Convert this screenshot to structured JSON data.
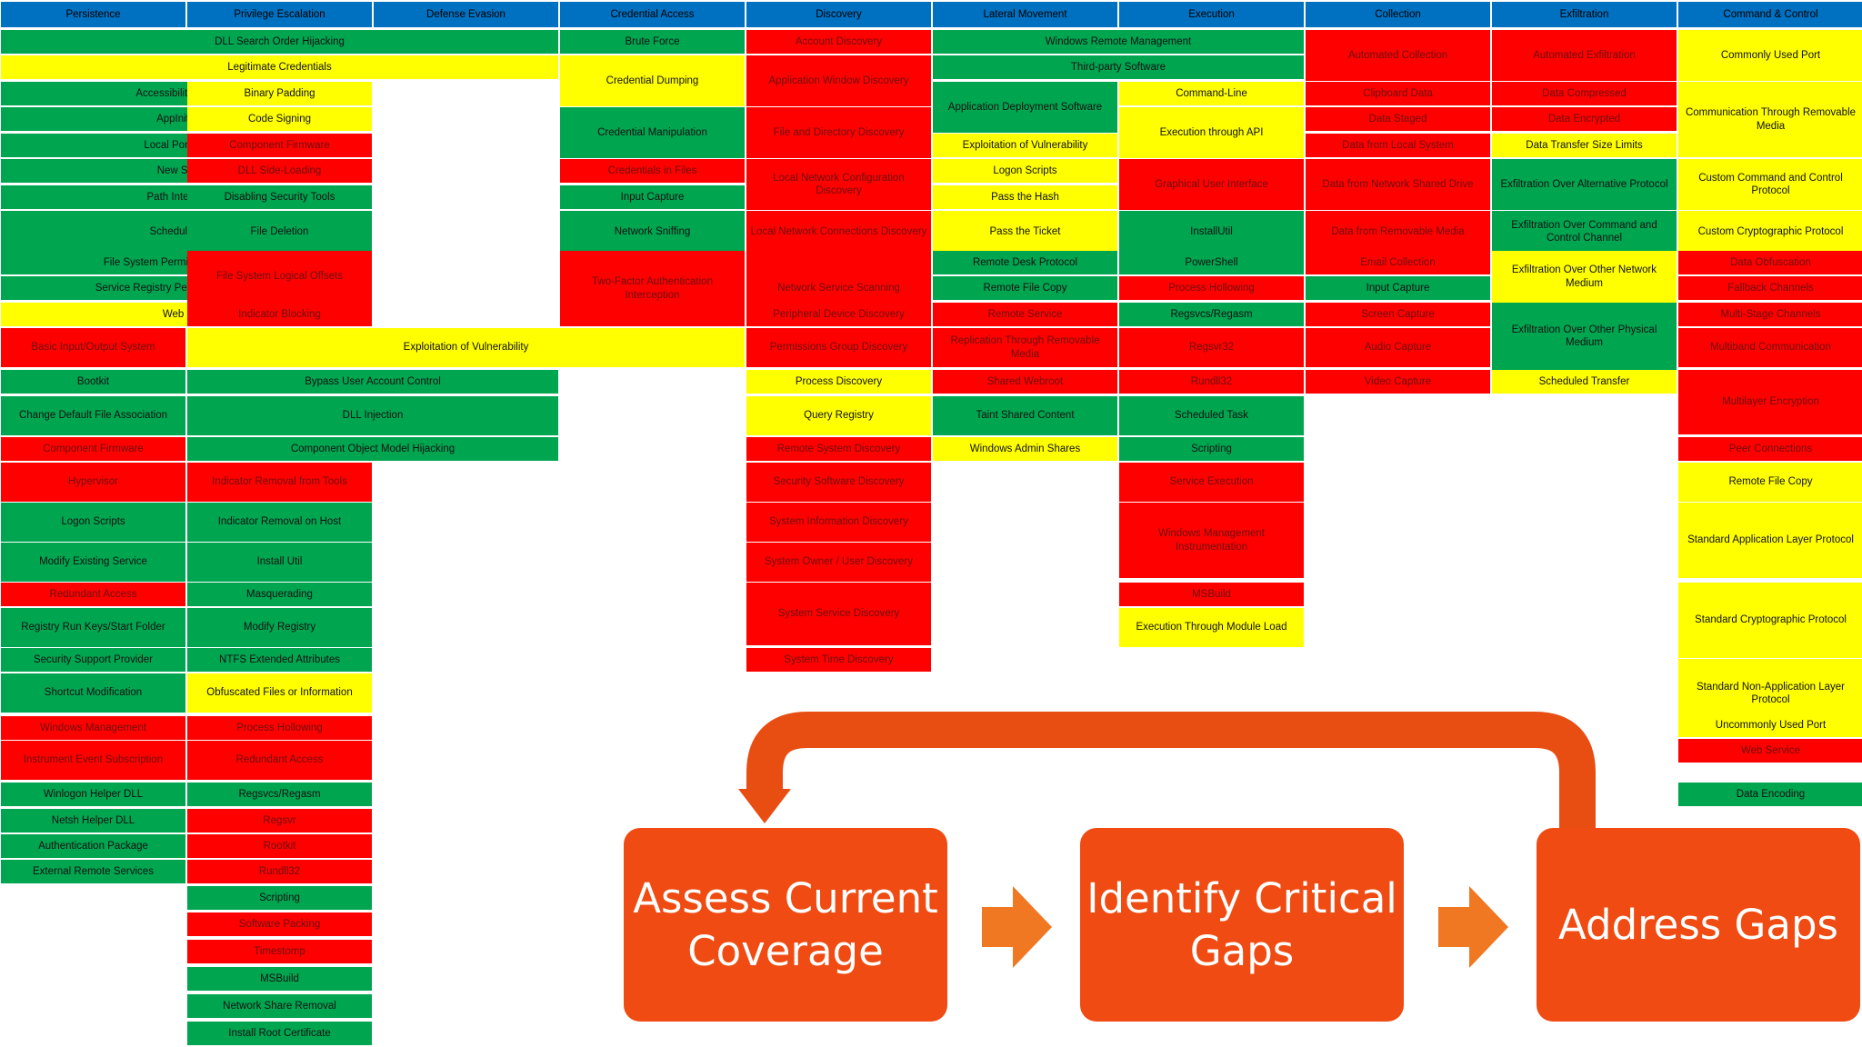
{
  "colors": {
    "green": "#00a550",
    "yellow": "#ffff00",
    "red": "#ff0000",
    "header": "#0070c0",
    "flow": "#ef4b12",
    "arrow": "#f07822",
    "loop": "#e84d12"
  },
  "columns": [
    {
      "name": "Persistence",
      "cells": [
        {
          "label": "DLL Search Order Hijacking",
          "status": "green",
          "span": 3
        },
        {
          "label": "Legitimate Credentials",
          "status": "yellow",
          "span": 3
        },
        {
          "label": "Accessibility Features",
          "status": "green",
          "span": 2
        },
        {
          "label": "AppInit DLLs",
          "status": "green",
          "span": 2
        },
        {
          "label": "Local Port Monitor",
          "status": "green",
          "span": 2
        },
        {
          "label": "New Service",
          "status": "green",
          "span": 2
        },
        {
          "label": "Path Interception",
          "status": "green",
          "span": 2
        },
        {
          "label": "Scheduled Task",
          "status": "green",
          "span": 2
        },
        {
          "label": "File System Permissions Weakness",
          "status": "green",
          "span": 2
        },
        {
          "label": "Service Registry Permission Weakness",
          "status": "green",
          "span": 2
        },
        {
          "label": "Web Shell",
          "status": "yellow",
          "span": 2
        },
        {
          "label": "Basic Input/Output System",
          "status": "red",
          "span": 1
        },
        {
          "label": "Bootkit",
          "status": "green",
          "span": 1
        },
        {
          "label": "Change Default File Association",
          "status": "green",
          "span": 1
        },
        {
          "label": "Component Firmware",
          "status": "red",
          "span": 1
        },
        {
          "label": "Hypervisor",
          "status": "red",
          "span": 1
        },
        {
          "label": "Logon Scripts",
          "status": "green",
          "span": 1
        },
        {
          "label": "Modify Existing Service",
          "status": "green",
          "span": 1
        },
        {
          "label": "Redundant Access",
          "status": "red",
          "span": 1
        },
        {
          "label": "Registry Run Keys/Start Folder",
          "status": "green",
          "span": 1
        },
        {
          "label": "Security Support Provider",
          "status": "green",
          "span": 1
        },
        {
          "label": "Shortcut Modification",
          "status": "green",
          "span": 1
        },
        {
          "label": "Windows Management",
          "status": "red",
          "span": 1
        },
        {
          "label": "Instrument Event Subscription",
          "status": "red",
          "span": 1
        },
        {
          "label": "Winlogon Helper DLL",
          "status": "green",
          "span": 1
        },
        {
          "label": "Netsh Helper DLL",
          "status": "green",
          "span": 1
        },
        {
          "label": "Authentication Package",
          "status": "green",
          "span": 1
        },
        {
          "label": "External Remote Services",
          "status": "green",
          "span": 1
        }
      ]
    },
    {
      "name": "Privilege Escalation",
      "cells": [
        {
          "label": "Binary Padding",
          "status": "yellow"
        },
        {
          "label": "Code Signing",
          "status": "yellow"
        },
        {
          "label": "Component Firmware",
          "status": "red"
        },
        {
          "label": "DLL Side-Loading",
          "status": "red"
        },
        {
          "label": "Disabling Security Tools",
          "status": "green"
        },
        {
          "label": "File Deletion",
          "status": "green"
        },
        {
          "label": "File System Logical Offsets",
          "status": "red"
        },
        {
          "label": "Indicator Blocking",
          "status": "red"
        },
        {
          "label": "Exploitation of Vulnerability",
          "status": "yellow",
          "span": 3
        },
        {
          "label": "Bypass User Account Control",
          "status": "green",
          "span": 2
        },
        {
          "label": "DLL Injection",
          "status": "green",
          "span": 2
        },
        {
          "label": "Component Object Model Hijacking",
          "status": "green",
          "span": 2
        },
        {
          "label": "Indicator Removal from Tools",
          "status": "red"
        },
        {
          "label": "Indicator Removal on Host",
          "status": "green"
        },
        {
          "label": "Install Util",
          "status": "green"
        },
        {
          "label": "Masquerading",
          "status": "green"
        },
        {
          "label": "Modify Registry",
          "status": "green"
        },
        {
          "label": "NTFS Extended Attributes",
          "status": "green"
        },
        {
          "label": "Obfuscated Files or Information",
          "status": "yellow"
        },
        {
          "label": "Process Hollowing",
          "status": "red"
        },
        {
          "label": "Redundant Access",
          "status": "red"
        },
        {
          "label": "Regsvcs/Regasm",
          "status": "green"
        },
        {
          "label": "Regsvr",
          "status": "red"
        },
        {
          "label": "Rootkit",
          "status": "red"
        },
        {
          "label": "Rundll32",
          "status": "red"
        },
        {
          "label": "Scripting",
          "status": "green"
        },
        {
          "label": "Software Packing",
          "status": "red"
        },
        {
          "label": "Timestomp",
          "status": "red"
        },
        {
          "label": "MSBuild",
          "status": "green"
        },
        {
          "label": "Network Share Removal",
          "status": "green"
        },
        {
          "label": "Install Root Certificate",
          "status": "green"
        }
      ]
    },
    {
      "name": "Defense Evasion",
      "cells": []
    },
    {
      "name": "Credential Access",
      "cells": [
        {
          "label": "Brute Force",
          "status": "green"
        },
        {
          "label": "Credential Dumping",
          "status": "yellow"
        },
        {
          "label": "Credential Manipulation",
          "status": "green"
        },
        {
          "label": "Credentials in Files",
          "status": "red"
        },
        {
          "label": "Input Capture",
          "status": "green"
        },
        {
          "label": "Network Sniffing",
          "status": "green"
        },
        {
          "label": "Two-Factor Authentication Interception",
          "status": "red"
        }
      ]
    },
    {
      "name": "Discovery",
      "cells": [
        {
          "label": "Account Discovery",
          "status": "red"
        },
        {
          "label": "Application Window Discovery",
          "status": "red"
        },
        {
          "label": "File and Directory Discovery",
          "status": "red"
        },
        {
          "label": "Local Network Configuration Discovery",
          "status": "red"
        },
        {
          "label": "Local Network Connections Discovery",
          "status": "red"
        },
        {
          "label": "Network Service Scanning",
          "status": "red"
        },
        {
          "label": "Peripheral Device Discovery",
          "status": "red"
        },
        {
          "label": "Permissions Group Discovery",
          "status": "red"
        },
        {
          "label": "Process Discovery",
          "status": "yellow"
        },
        {
          "label": "Query Registry",
          "status": "yellow"
        },
        {
          "label": "Remote System Discovery",
          "status": "red"
        },
        {
          "label": "Security Software Discovery",
          "status": "red"
        },
        {
          "label": "System Information Discovery",
          "status": "red"
        },
        {
          "label": "System Owner / User Discovery",
          "status": "red"
        },
        {
          "label": "System Service Discovery",
          "status": "red"
        },
        {
          "label": "System Time Discovery",
          "status": "red"
        }
      ]
    },
    {
      "name": "Lateral Movement",
      "cells": [
        {
          "label": "Windows Remote Management",
          "status": "green",
          "span": 2
        },
        {
          "label": "Third-party Software",
          "status": "green",
          "span": 2
        },
        {
          "label": "Application Deployment Software",
          "status": "green"
        },
        {
          "label": "Exploitation of Vulnerability",
          "status": "yellow"
        },
        {
          "label": "Logon Scripts",
          "status": "yellow"
        },
        {
          "label": "Pass the Hash",
          "status": "yellow"
        },
        {
          "label": "Pass the Ticket",
          "status": "yellow"
        },
        {
          "label": "Remote Desk Protocol",
          "status": "green"
        },
        {
          "label": "Remote File Copy",
          "status": "green"
        },
        {
          "label": "Remote Service",
          "status": "red"
        },
        {
          "label": "Replication Through Removable Media",
          "status": "red"
        },
        {
          "label": "Shared Webroot",
          "status": "red"
        },
        {
          "label": "Taint Shared Content",
          "status": "green"
        },
        {
          "label": "Windows Admin Shares",
          "status": "yellow"
        }
      ]
    },
    {
      "name": "Execution",
      "cells": [
        {
          "label": "Command-Line",
          "status": "yellow"
        },
        {
          "label": "Execution through API",
          "status": "yellow"
        },
        {
          "label": "Graphical User Interface",
          "status": "red"
        },
        {
          "label": "InstallUtil",
          "status": "green"
        },
        {
          "label": "PowerShell",
          "status": "green"
        },
        {
          "label": "Process Hollowing",
          "status": "red"
        },
        {
          "label": "Regsvcs/Regasm",
          "status": "green"
        },
        {
          "label": "Regsvr32",
          "status": "red"
        },
        {
          "label": "Rundll32",
          "status": "red"
        },
        {
          "label": "Scheduled Task",
          "status": "green"
        },
        {
          "label": "Scripting",
          "status": "green"
        },
        {
          "label": "Service Execution",
          "status": "red"
        },
        {
          "label": "Windows Management Instrumentation",
          "status": "red"
        },
        {
          "label": "MSBuild",
          "status": "red"
        },
        {
          "label": "Execution Through Module Load",
          "status": "yellow"
        }
      ]
    },
    {
      "name": "Collection",
      "cells": [
        {
          "label": "Automated Collection",
          "status": "red"
        },
        {
          "label": "Clipboard Data",
          "status": "red"
        },
        {
          "label": "Data Staged",
          "status": "red"
        },
        {
          "label": "Data from Local System",
          "status": "red"
        },
        {
          "label": "Data from Network Shared Drive",
          "status": "red"
        },
        {
          "label": "Data from Removable Media",
          "status": "red"
        },
        {
          "label": "Email Collection",
          "status": "red"
        },
        {
          "label": "Input Capture",
          "status": "green"
        },
        {
          "label": "Screen Capture",
          "status": "red"
        },
        {
          "label": "Audio Capture",
          "status": "red"
        },
        {
          "label": "Video Capture",
          "status": "red"
        }
      ]
    },
    {
      "name": "Exfiltration",
      "cells": [
        {
          "label": "Automated Exfiltration",
          "status": "red"
        },
        {
          "label": "Data Compressed",
          "status": "red"
        },
        {
          "label": "Data Encrypted",
          "status": "red"
        },
        {
          "label": "Data Transfer Size Limits",
          "status": "yellow"
        },
        {
          "label": "Exfiltration Over Alternative Protocol",
          "status": "green"
        },
        {
          "label": "Exfiltration Over Command and Control Channel",
          "status": "green"
        },
        {
          "label": "Exfiltration Over Other Network Medium",
          "status": "yellow"
        },
        {
          "label": "Exfiltration Over Other Physical Medium",
          "status": "green"
        },
        {
          "label": "Scheduled Transfer",
          "status": "yellow"
        }
      ]
    },
    {
      "name": "Command & Control",
      "cells": [
        {
          "label": "Commonly Used Port",
          "status": "yellow"
        },
        {
          "label": "Communication Through Removable Media",
          "status": "yellow"
        },
        {
          "label": "Custom Command and Control Protocol",
          "status": "yellow"
        },
        {
          "label": "Custom Cryptographic Protocol",
          "status": "yellow"
        },
        {
          "label": "Data Obfuscation",
          "status": "red"
        },
        {
          "label": "Fallback Channels",
          "status": "red"
        },
        {
          "label": "Multi-Stage Channels",
          "status": "red"
        },
        {
          "label": "Multiband Communication",
          "status": "red"
        },
        {
          "label": "Multilayer Encryption",
          "status": "red"
        },
        {
          "label": "Peer Connections",
          "status": "red"
        },
        {
          "label": "Remote File Copy",
          "status": "yellow"
        },
        {
          "label": "Standard Application Layer Protocol",
          "status": "yellow"
        },
        {
          "label": "Standard Cryptographic Protocol",
          "status": "yellow"
        },
        {
          "label": "Standard Non-Application Layer Protocol",
          "status": "yellow"
        },
        {
          "label": "Uncommonly Used Port",
          "status": "yellow"
        },
        {
          "label": "Web Service",
          "status": "red"
        },
        {
          "label": "Data Encoding",
          "status": "green"
        }
      ]
    }
  ],
  "flow": {
    "steps": [
      {
        "line1": "Assess Current",
        "line2": "Coverage"
      },
      {
        "line1": "Identify Critical",
        "line2": "Gaps"
      },
      {
        "line1": "Address Gaps",
        "line2": ""
      }
    ]
  }
}
